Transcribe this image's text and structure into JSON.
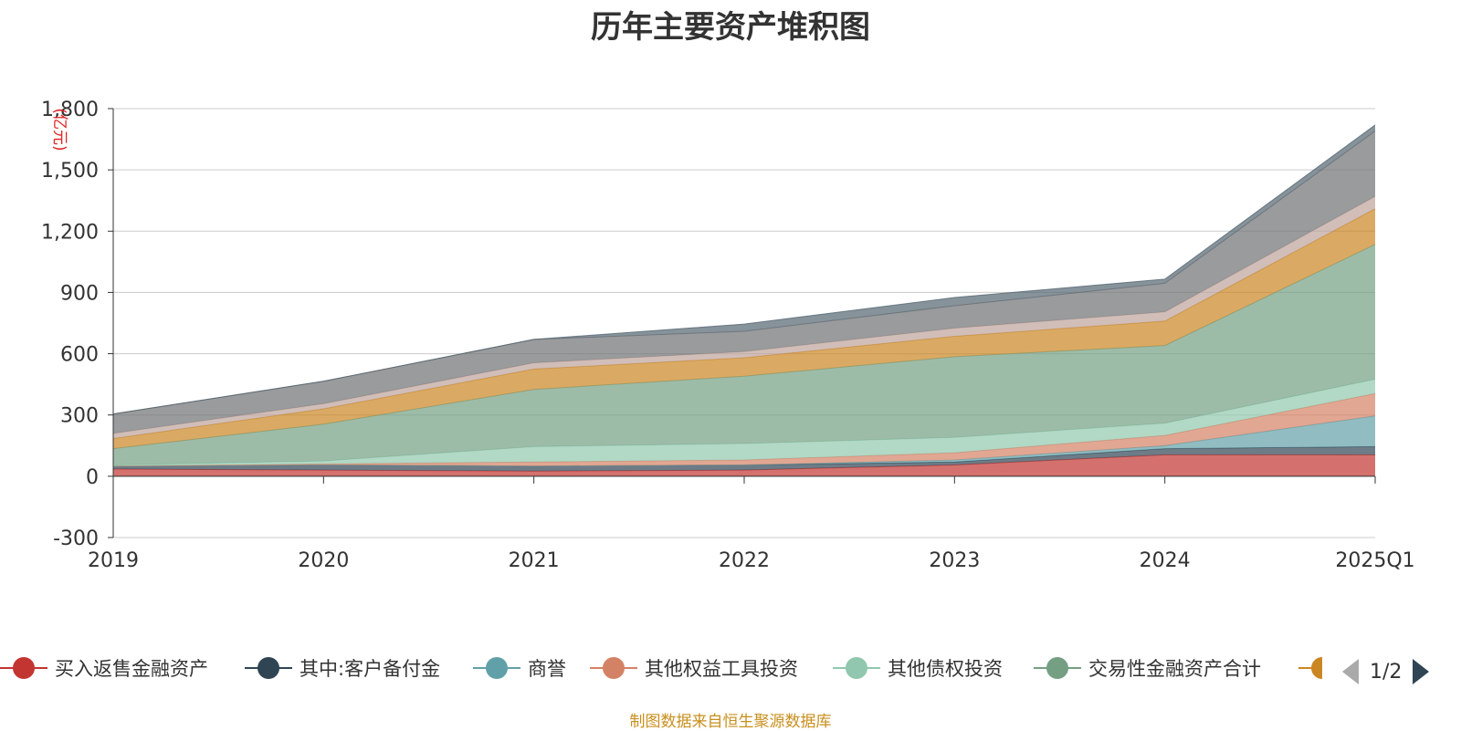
{
  "chart_data": {
    "type": "area",
    "title": "历年主要资产堆积图",
    "ylabel": "(亿元)",
    "ylim": [
      -300,
      1800
    ],
    "y_ticks": [
      "-300",
      "0",
      "300",
      "600",
      "900",
      "1,200",
      "1,500",
      "1,800"
    ],
    "y_tick_values": [
      -300,
      0,
      300,
      600,
      900,
      1200,
      1500,
      1800
    ],
    "categories": [
      "2019",
      "2020",
      "2021",
      "2022",
      "2023",
      "2024",
      "2025Q1"
    ],
    "series": [
      {
        "name": "买入返售金融资产",
        "color": "#c23531",
        "values": [
          35,
          30,
          25,
          30,
          55,
          105,
          105
        ]
      },
      {
        "name": "其中:客户备付金",
        "color": "#2f4554",
        "values": [
          15,
          25,
          25,
          25,
          15,
          30,
          40
        ]
      },
      {
        "name": "商誉",
        "color": "#61a0a8",
        "values": [
          0,
          0,
          0,
          0,
          10,
          15,
          150
        ]
      },
      {
        "name": "其他权益工具投资",
        "color": "#d48265",
        "values": [
          0,
          5,
          20,
          25,
          35,
          50,
          110
        ]
      },
      {
        "name": "其他债权投资",
        "color": "#91c7ae",
        "values": [
          5,
          15,
          75,
          80,
          75,
          60,
          70
        ]
      },
      {
        "name": "交易性金融资产合计",
        "color": "#749f83",
        "values": [
          80,
          180,
          280,
          330,
          395,
          380,
          660
        ]
      },
      {
        "name": "",
        "color": "#ca8622",
        "values": [
          50,
          75,
          100,
          90,
          100,
          120,
          175
        ]
      },
      {
        "name": "",
        "color": "#bda29a",
        "values": [
          25,
          25,
          30,
          30,
          40,
          45,
          60
        ]
      },
      {
        "name": "",
        "color": "#6e7074",
        "values": [
          95,
          110,
          115,
          100,
          110,
          140,
          320
        ]
      },
      {
        "name": "",
        "color": "#546570",
        "values": [
          0,
          0,
          0,
          35,
          40,
          20,
          30
        ]
      }
    ],
    "grid": true,
    "legend_position": "bottom"
  },
  "legend": {
    "items": [
      {
        "label": "买入返售金融资产",
        "color": "#c23531"
      },
      {
        "label": "其中:客户备付金",
        "color": "#2f4554"
      },
      {
        "label": "商誉",
        "color": "#61a0a8"
      },
      {
        "label": "其他权益工具投资",
        "color": "#d48265"
      },
      {
        "label": "其他债权投资",
        "color": "#91c7ae"
      },
      {
        "label": "交易性金融资产合计",
        "color": "#749f83"
      },
      {
        "label": "",
        "color": "#ca8622"
      }
    ],
    "page": "1/2"
  },
  "source_note": "制图数据来自恒生聚源数据库"
}
